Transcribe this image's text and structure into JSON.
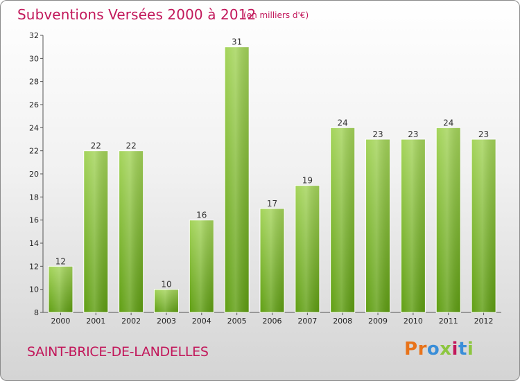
{
  "header": {
    "title": "Subventions Versées 2000 à 2012",
    "subtitle": "(en milliers d'€)"
  },
  "footer": {
    "commune": "SAINT-BRICE-DE-LANDELLES",
    "logo_text": "Proxiti",
    "logo_colors": [
      "#e8731a",
      "#e8731a",
      "#3a8ed8",
      "#8cc63f",
      "#c2185b",
      "#3a8ed8",
      "#8cc63f"
    ]
  },
  "colors": {
    "text_accent": "#c2185b",
    "bar_light": "#a4d45a",
    "bar_dark": "#5f9e12"
  },
  "chart_data": {
    "type": "bar",
    "title": "Subventions Versées 2000 à 2012",
    "subtitle": "(en milliers d'€)",
    "xlabel": "",
    "ylabel": "",
    "categories": [
      "2000",
      "2001",
      "2002",
      "2003",
      "2004",
      "2005",
      "2006",
      "2007",
      "2008",
      "2009",
      "2010",
      "2011",
      "2012"
    ],
    "values": [
      12,
      22,
      22,
      10,
      16,
      31,
      17,
      19,
      24,
      23,
      23,
      24,
      23
    ],
    "ylim": [
      8,
      32
    ],
    "yticks": [
      8,
      10,
      12,
      14,
      16,
      18,
      20,
      22,
      24,
      26,
      28,
      30,
      32
    ],
    "grid": false,
    "legend": "none",
    "data_labels": true
  }
}
